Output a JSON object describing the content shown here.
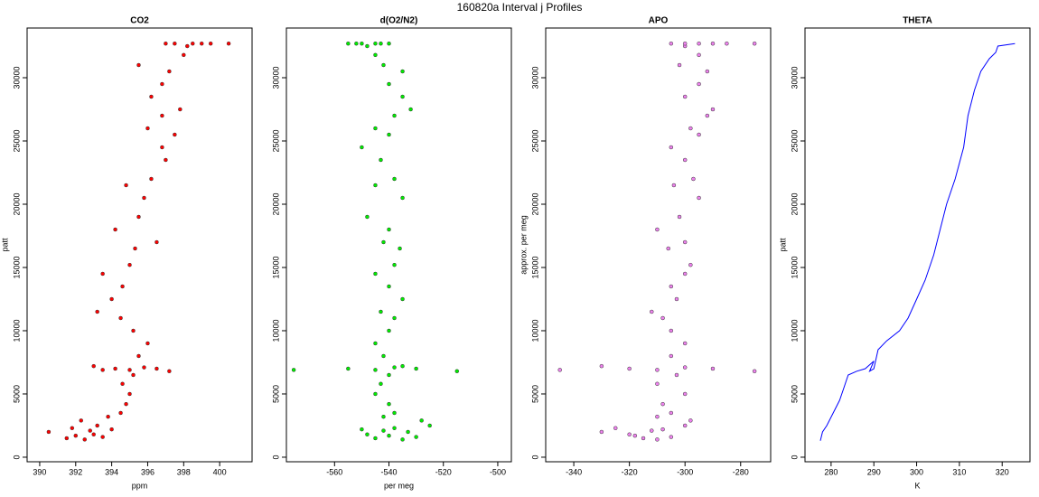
{
  "title": "160820a   Interval j Profiles",
  "chart_data": [
    {
      "type": "scatter",
      "title": "CO2",
      "x_label": "ppm",
      "y_label": "patt",
      "color": "#ff0000",
      "xlim": [
        389.3,
        401.8
      ],
      "xticks": [
        390,
        392,
        394,
        396,
        398,
        400
      ],
      "ylim": [
        -360,
        33930
      ],
      "yticks": [
        0,
        5000,
        10000,
        15000,
        20000,
        25000,
        30000
      ],
      "x": [
        391.5,
        392,
        392.5,
        393,
        393.5,
        392.8,
        391.8,
        393.2,
        394,
        390.5,
        392.3,
        393.8,
        394.5,
        394.8,
        395,
        394.6,
        395.2,
        393.5,
        394.2,
        395,
        395.8,
        396.5,
        397.2,
        393,
        395.5,
        396,
        395.2,
        394.5,
        393.2,
        394,
        394.6,
        393.5,
        395,
        395.3,
        396.5,
        394.2,
        395.5,
        395.8,
        394.8,
        396.2,
        397,
        396.8,
        397.5,
        396,
        396.8,
        397.8,
        396.2,
        396.8,
        397.2,
        395.5,
        398,
        398.2,
        397.5,
        398.5,
        399.5,
        400.5,
        397,
        399
      ],
      "y": [
        1500,
        1700,
        1400,
        1800,
        1600,
        2100,
        2300,
        2500,
        2200,
        2000,
        2900,
        3200,
        3500,
        4200,
        5000,
        5800,
        6500,
        6900,
        7000,
        6900,
        7100,
        7000,
        6800,
        7200,
        8000,
        9000,
        10000,
        11000,
        11500,
        12500,
        13500,
        14500,
        15200,
        16500,
        17000,
        18000,
        19000,
        20500,
        21500,
        22000,
        23500,
        24500,
        25500,
        26000,
        27000,
        27500,
        28500,
        29500,
        30500,
        31000,
        31800,
        32500,
        32700,
        32700,
        32700,
        32700,
        32700,
        32700
      ]
    },
    {
      "type": "scatter",
      "title": "d(O2/N2)",
      "x_label": "per meg",
      "color": "#00ee00",
      "xlim": [
        -577.7,
        -495
      ],
      "xticks": [
        -560,
        -540,
        -520,
        -500
      ],
      "ylim": [
        -360,
        33930
      ],
      "yticks": [
        0,
        5000,
        10000,
        15000,
        20000,
        25000,
        30000
      ],
      "x": [
        -545,
        -540,
        -535,
        -548,
        -530,
        -542,
        -538,
        -525,
        -550,
        -533,
        -528,
        -542,
        -538,
        -540,
        -545,
        -543,
        -540,
        -575,
        -555,
        -545,
        -538,
        -530,
        -515,
        -535,
        -542,
        -545,
        -540,
        -538,
        -543,
        -535,
        -540,
        -545,
        -538,
        -536,
        -542,
        -540,
        -548,
        -535,
        -545,
        -538,
        -543,
        -550,
        -540,
        -545,
        -538,
        -532,
        -535,
        -540,
        -535,
        -542,
        -545,
        -548,
        -550,
        -545,
        -540,
        -552,
        -555,
        -543
      ],
      "y": [
        1500,
        1700,
        1400,
        1800,
        1600,
        2100,
        2300,
        2500,
        2200,
        2000,
        2900,
        3200,
        3500,
        4200,
        5000,
        5800,
        6500,
        6900,
        7000,
        6900,
        7100,
        7000,
        6800,
        7200,
        8000,
        9000,
        10000,
        11000,
        11500,
        12500,
        13500,
        14500,
        15200,
        16500,
        17000,
        18000,
        19000,
        20500,
        21500,
        22000,
        23500,
        24500,
        25500,
        26000,
        27000,
        27500,
        28500,
        29500,
        30500,
        31000,
        31800,
        32500,
        32700,
        32700,
        32700,
        32700,
        32700,
        32700
      ]
    },
    {
      "type": "scatter",
      "title": "APO",
      "y_label": "approx. per meg",
      "color": "#ee82ee",
      "xlim": [
        -350.1,
        -269.2
      ],
      "xticks": [
        -340,
        -320,
        -300,
        -280
      ],
      "ylim": [
        -360,
        33930
      ],
      "yticks": [
        0,
        5000,
        10000,
        15000,
        20000,
        25000,
        30000
      ],
      "x": [
        -315,
        -318,
        -310,
        -320,
        -305,
        -312,
        -325,
        -300,
        -308,
        -330,
        -298,
        -310,
        -305,
        -308,
        -300,
        -310,
        -303,
        -345,
        -320,
        -310,
        -300,
        -290,
        -275,
        -330,
        -305,
        -300,
        -305,
        -308,
        -312,
        -303,
        -305,
        -300,
        -298,
        -306,
        -300,
        -310,
        -302,
        -295,
        -304,
        -297,
        -300,
        -305,
        -295,
        -298,
        -292,
        -290,
        -300,
        -295,
        -292,
        -302,
        -295,
        -300,
        -305,
        -295,
        -285,
        -275,
        -300,
        -290
      ],
      "y": [
        1500,
        1700,
        1400,
        1800,
        1600,
        2100,
        2300,
        2500,
        2200,
        2000,
        2900,
        3200,
        3500,
        4200,
        5000,
        5800,
        6500,
        6900,
        7000,
        6900,
        7100,
        7000,
        6800,
        7200,
        8000,
        9000,
        10000,
        11000,
        11500,
        12500,
        13500,
        14500,
        15200,
        16500,
        17000,
        18000,
        19000,
        20500,
        21500,
        22000,
        23500,
        24500,
        25500,
        26000,
        27000,
        27500,
        28500,
        29500,
        30500,
        31000,
        31800,
        32500,
        32700,
        32700,
        32700,
        32700,
        32700,
        32700
      ]
    },
    {
      "type": "line",
      "title": "THETA",
      "x_label": "K",
      "y_label": "patt",
      "color": "#0000ff",
      "xlim": [
        273.9,
        326.5
      ],
      "xticks": [
        280,
        290,
        300,
        310,
        320
      ],
      "ylim": [
        -360,
        33930
      ],
      "yticks": [
        0,
        5000,
        10000,
        15000,
        20000,
        25000,
        30000
      ],
      "x": [
        277.5,
        278,
        279,
        280.5,
        282,
        283,
        284,
        286,
        288,
        289,
        290,
        289,
        290,
        291,
        293,
        296,
        298,
        300,
        302,
        304,
        305.5,
        307,
        309,
        311,
        312,
        313.5,
        315,
        317,
        318.5,
        319,
        323
      ],
      "y": [
        1300,
        2000,
        2500,
        3500,
        4500,
        5500,
        6500,
        6800,
        7000,
        7300,
        7600,
        6800,
        7000,
        8500,
        9200,
        10000,
        11000,
        12500,
        14000,
        16000,
        18000,
        20000,
        22000,
        24500,
        27000,
        29000,
        30500,
        31500,
        32000,
        32500,
        32700
      ]
    }
  ]
}
